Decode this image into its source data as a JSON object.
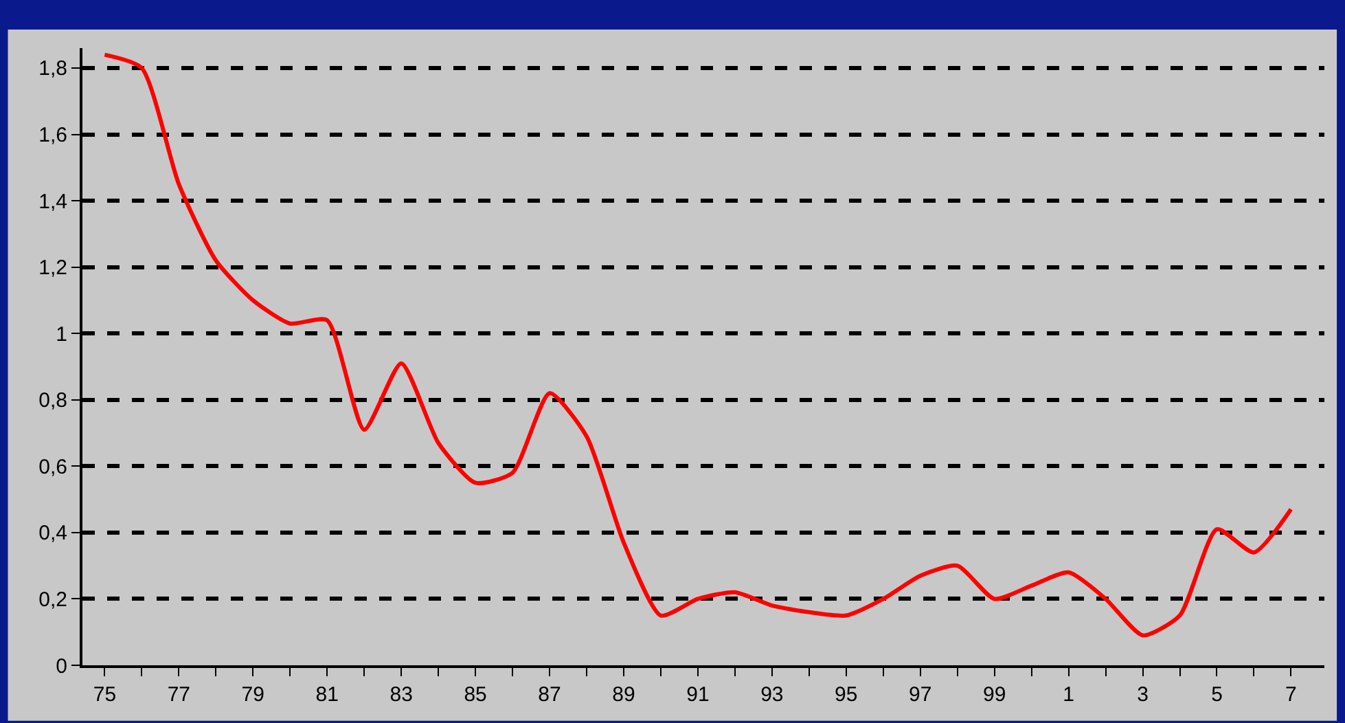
{
  "chart_data": {
    "type": "line",
    "categories": [
      "75",
      null,
      "77",
      null,
      "79",
      null,
      "81",
      null,
      "83",
      null,
      "85",
      null,
      "87",
      null,
      "89",
      null,
      "91",
      null,
      "93",
      null,
      "95",
      null,
      "97",
      null,
      "99",
      null,
      "1",
      null,
      "3",
      null,
      "5",
      null,
      "7"
    ],
    "series": [
      {
        "color": "#ff0000",
        "values": [
          1.84,
          1.8,
          1.45,
          1.22,
          1.1,
          1.03,
          1.04,
          0.71,
          0.91,
          0.67,
          0.55,
          0.58,
          0.82,
          0.69,
          0.37,
          0.15,
          0.2,
          0.22,
          0.18,
          0.16,
          0.15,
          0.2,
          0.27,
          0.3,
          0.2,
          0.24,
          0.28,
          0.2,
          0.09,
          0.15,
          0.41,
          0.34,
          0.47
        ]
      }
    ],
    "ylim": [
      0,
      1.86
    ],
    "yticks": [
      {
        "value": 0,
        "label": "0"
      },
      {
        "value": 0.2,
        "label": "0,2"
      },
      {
        "value": 0.4,
        "label": "0,4"
      },
      {
        "value": 0.6,
        "label": "0,6"
      },
      {
        "value": 0.8,
        "label": "0,8"
      },
      {
        "value": 1,
        "label": "1"
      },
      {
        "value": 1.2,
        "label": "1,2"
      },
      {
        "value": 1.4,
        "label": "1,4"
      },
      {
        "value": 1.6,
        "label": "1,6"
      },
      {
        "value": 1.8,
        "label": "1,8"
      }
    ],
    "grid": "y",
    "marker": "none",
    "line_style": "solid"
  }
}
